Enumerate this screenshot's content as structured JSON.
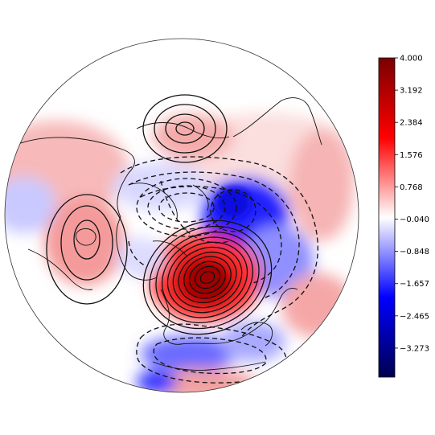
{
  "map": {
    "projection": "north-polar-stereographic",
    "field": "anomaly shading with contour overlay",
    "contour_style": {
      "positive": "solid",
      "negative": "dashed",
      "color": "#111111"
    }
  },
  "colorbar": {
    "colormap": "seismic",
    "colors": {
      "min": "#00004c",
      "low": "#0000ff",
      "mid": "#ffffff",
      "high": "#ff0000",
      "max": "#800000"
    },
    "range": [
      -4.0,
      4.0
    ],
    "ticks": [
      {
        "value": 4.0,
        "label": "4.000"
      },
      {
        "value": 3.192,
        "label": "3.192"
      },
      {
        "value": 2.384,
        "label": "2.384"
      },
      {
        "value": 1.576,
        "label": "1.576"
      },
      {
        "value": 0.768,
        "label": "0.768"
      },
      {
        "value": -0.04,
        "label": "−0.040"
      },
      {
        "value": -0.848,
        "label": "−0.848"
      },
      {
        "value": -1.657,
        "label": "−1.657"
      },
      {
        "value": -2.465,
        "label": "−2.465"
      },
      {
        "value": -3.273,
        "label": "−3.273"
      }
    ]
  }
}
